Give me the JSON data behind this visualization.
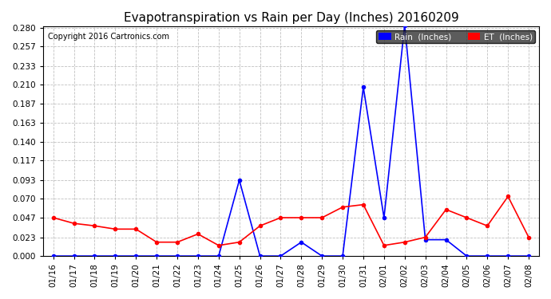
{
  "title": "Evapotranspiration vs Rain per Day (Inches) 20160209",
  "copyright": "Copyright 2016 Cartronics.com",
  "x_labels": [
    "01/16",
    "01/17",
    "01/18",
    "01/19",
    "01/20",
    "01/21",
    "01/22",
    "01/23",
    "01/24",
    "01/25",
    "01/26",
    "01/27",
    "01/28",
    "01/29",
    "01/30",
    "01/31",
    "02/01",
    "02/02",
    "02/03",
    "02/04",
    "02/05",
    "02/06",
    "02/07",
    "02/08"
  ],
  "rain_values": [
    0.0,
    0.0,
    0.0,
    0.0,
    0.0,
    0.0,
    0.0,
    0.0,
    0.0,
    0.093,
    0.0,
    0.0,
    0.017,
    0.0,
    0.0,
    0.207,
    0.047,
    0.283,
    0.02,
    0.02,
    0.0,
    0.0,
    0.0,
    0.0
  ],
  "et_values": [
    0.047,
    0.04,
    0.037,
    0.033,
    0.033,
    0.017,
    0.017,
    0.027,
    0.013,
    0.017,
    0.037,
    0.047,
    0.047,
    0.047,
    0.06,
    0.063,
    0.013,
    0.017,
    0.023,
    0.057,
    0.047,
    0.037,
    0.073,
    0.023
  ],
  "rain_color": "#0000ff",
  "et_color": "#ff0000",
  "background_color": "#ffffff",
  "grid_color": "#c0c0c0",
  "ylim_min": 0.0,
  "ylim_max": 0.28,
  "yticks": [
    0.0,
    0.023,
    0.047,
    0.07,
    0.093,
    0.117,
    0.14,
    0.163,
    0.187,
    0.21,
    0.233,
    0.257,
    0.28
  ],
  "legend_rain_label": "Rain  (Inches)",
  "legend_et_label": "ET  (Inches)",
  "legend_rain_bg": "#0000ff",
  "legend_et_bg": "#ff0000"
}
